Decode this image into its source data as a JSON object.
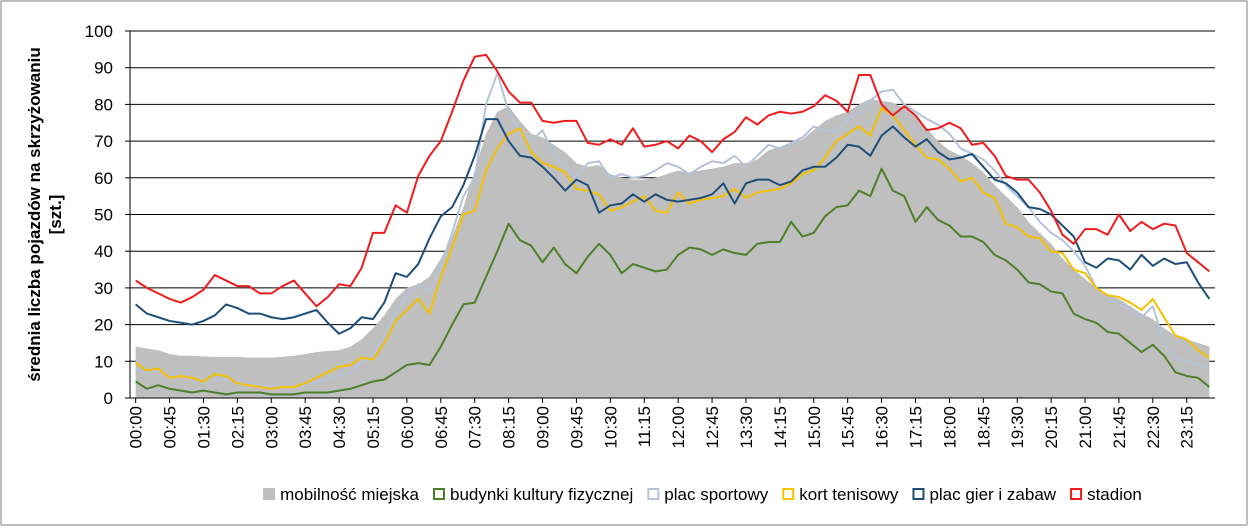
{
  "chart_data": {
    "type": "line",
    "ylabel": [
      "średnia liczba pojazdów na skrzyżowaniu",
      "[szt.]"
    ],
    "categories": [
      "00:00",
      null,
      null,
      "00:45",
      null,
      null,
      "01:30",
      null,
      null,
      "02:15",
      null,
      null,
      "03:00",
      null,
      null,
      "03:45",
      null,
      null,
      "04:30",
      null,
      null,
      "05:15",
      null,
      null,
      "06:00",
      null,
      null,
      "06:45",
      null,
      null,
      "07:30",
      null,
      null,
      "08:15",
      null,
      null,
      "09:00",
      null,
      null,
      "09:45",
      null,
      null,
      "10:30",
      null,
      null,
      "11:15",
      null,
      null,
      "12:00",
      null,
      null,
      "12:45",
      null,
      null,
      "13:30",
      null,
      null,
      "14:15",
      null,
      null,
      "15:00",
      null,
      null,
      "15:45",
      null,
      null,
      "16:30",
      null,
      null,
      "17:15",
      null,
      null,
      "18:00",
      null,
      null,
      "18:45",
      null,
      null,
      "19:30",
      null,
      null,
      "20:15",
      null,
      null,
      "21:00",
      null,
      null,
      "21:45",
      null,
      null,
      "22:30",
      null,
      null,
      "23:15",
      null,
      null
    ],
    "ylim": [
      0,
      100
    ],
    "yticks": [
      0,
      10,
      20,
      30,
      40,
      50,
      60,
      70,
      80,
      90,
      100
    ],
    "grid": true,
    "legend": "bottom",
    "series": [
      {
        "name": "mobilność miejska",
        "type": "area",
        "color": "#bfbfbf",
        "values": [
          14,
          13.5,
          13,
          12,
          11.5,
          11.5,
          11.3,
          11.2,
          11.2,
          11.2,
          11,
          11,
          11,
          11.2,
          11.5,
          12,
          12.5,
          12.8,
          13,
          14,
          16,
          19,
          22.5,
          27,
          30,
          31,
          33,
          38,
          44,
          52,
          62,
          72,
          78,
          79.5,
          75.5,
          72,
          71,
          69,
          67,
          64,
          63,
          63.5,
          61,
          60,
          59.5,
          59.5,
          60,
          61,
          62,
          61.5,
          62,
          62.5,
          63,
          64,
          64,
          65,
          67.5,
          68.5,
          69.5,
          70.5,
          73,
          75.5,
          77,
          78,
          80,
          81.5,
          81,
          80.5,
          79,
          77,
          73.5,
          70,
          67.5,
          66,
          64,
          61.5,
          58,
          55,
          52,
          48,
          45,
          42,
          38,
          35,
          32.5,
          30,
          28,
          27,
          25,
          23,
          21.5,
          19,
          17,
          16,
          15,
          14
        ]
      },
      {
        "name": "budynki kultury fizycznej",
        "type": "line",
        "color": "#4f7f2a",
        "values": [
          4.5,
          2.5,
          3.5,
          2.5,
          2,
          1.5,
          2,
          1.5,
          1,
          1.5,
          1.5,
          1.5,
          1,
          1,
          1,
          1.5,
          1.5,
          1.5,
          2,
          2.5,
          3.5,
          4.5,
          5,
          7,
          9,
          9.5,
          9,
          14,
          20,
          25.5,
          26,
          33,
          40,
          47.5,
          43,
          41.5,
          37,
          41,
          36.5,
          34,
          38.5,
          42,
          39,
          34,
          36.5,
          35.5,
          34.5,
          35,
          39,
          41,
          40.5,
          39,
          40.5,
          39.5,
          39,
          42,
          42.5,
          42.5,
          48,
          44,
          45,
          49.5,
          52,
          52.5,
          56.5,
          55,
          62.5,
          56.5,
          55,
          48,
          52,
          48.5,
          47,
          44,
          44,
          42.5,
          39,
          37.5,
          35,
          31.5,
          31,
          29,
          28.5,
          23,
          21.5,
          20.5,
          18,
          17.5,
          15,
          12.5,
          14.5,
          11.5,
          7,
          6,
          5.5,
          3
        ]
      },
      {
        "name": "plac sportowy",
        "type": "line",
        "color": "#b7c3d9",
        "values": [
          8,
          7,
          7.5,
          6,
          6,
          5.5,
          5,
          5,
          5,
          4.5,
          4,
          3.5,
          3,
          3,
          3,
          3.5,
          4.5,
          5,
          6,
          7,
          10,
          11,
          17,
          23,
          28,
          31,
          29,
          36,
          45,
          55,
          60,
          80,
          88.5,
          78,
          73,
          70,
          73,
          66,
          63,
          60,
          64,
          64.5,
          60,
          61,
          60,
          60.5,
          62,
          64,
          63,
          61,
          63,
          64.5,
          64,
          66,
          63,
          66,
          69,
          68,
          69.5,
          71,
          74,
          73,
          72.5,
          76,
          78,
          81,
          83.5,
          84,
          80,
          78,
          76,
          74.5,
          72,
          68,
          66.5,
          65,
          62,
          58,
          55,
          52,
          48,
          45,
          43,
          40,
          36,
          30,
          27.5,
          25.5,
          24,
          22,
          25,
          15,
          11,
          10,
          9,
          8
        ]
      },
      {
        "name": "kort tenisowy",
        "type": "line",
        "color": "#f5c000",
        "values": [
          9.5,
          7.5,
          8,
          5.5,
          6,
          5.5,
          4.5,
          6.5,
          6,
          4,
          3.5,
          3,
          2.5,
          3,
          3,
          4,
          5.5,
          7,
          8.5,
          9,
          11,
          10.5,
          15,
          21,
          24,
          27,
          23,
          33,
          41,
          50,
          51,
          62,
          68,
          72,
          73.5,
          67,
          64,
          63,
          61.5,
          57,
          56.5,
          55.5,
          51,
          52,
          53.5,
          55,
          51,
          50.5,
          56,
          53,
          54,
          54.5,
          55,
          57,
          54.5,
          56,
          56.5,
          57,
          58.5,
          61,
          62,
          65.5,
          70,
          72,
          74,
          71.5,
          79,
          77,
          73,
          69,
          65.5,
          65,
          62.5,
          59,
          60,
          56,
          54.5,
          47.5,
          46.5,
          44,
          43.5,
          40,
          39.5,
          35,
          34,
          30,
          28,
          27.5,
          26,
          24,
          27,
          22,
          17,
          16,
          13,
          11
        ]
      },
      {
        "name": "plac gier i zabaw",
        "type": "line",
        "color": "#1f4e79",
        "values": [
          25.5,
          23,
          22,
          21,
          20.5,
          20,
          21,
          22.5,
          25.5,
          24.5,
          23,
          23,
          22,
          21.5,
          22,
          23,
          24,
          20.5,
          17.5,
          19,
          22,
          21.5,
          26,
          34,
          33,
          36.5,
          43.5,
          49.5,
          52,
          58,
          66,
          76,
          76,
          70,
          66,
          65.5,
          63,
          60,
          56.5,
          59.5,
          58,
          50.5,
          52.5,
          53,
          55.5,
          53.5,
          55.5,
          54,
          53.5,
          54,
          54.5,
          55.5,
          58.5,
          53,
          58.5,
          59.5,
          59.5,
          58,
          59,
          62,
          63,
          63,
          65.5,
          69,
          68.5,
          66,
          71.5,
          74,
          71,
          68.5,
          70.5,
          67,
          65,
          65.5,
          66.5,
          63,
          59.5,
          58.5,
          56,
          52,
          51.5,
          50,
          47,
          44,
          37,
          35.5,
          38,
          37.5,
          35,
          39,
          36,
          38,
          36.5,
          37,
          31.5,
          27
        ]
      },
      {
        "name": "stadion",
        "type": "line",
        "color": "#ee1c1c",
        "values": [
          32,
          30,
          28.5,
          27,
          26,
          27.5,
          29.5,
          33.5,
          32,
          30.5,
          30.5,
          28.5,
          28.5,
          30.5,
          32,
          28.5,
          25,
          27.5,
          31,
          30.5,
          35.5,
          45,
          45,
          52.5,
          50.5,
          60.5,
          66,
          70,
          78,
          86.5,
          93,
          93.5,
          89,
          83.5,
          80.5,
          80.5,
          75.5,
          75,
          75.5,
          75.5,
          69.5,
          69,
          70.5,
          69,
          73.5,
          68.5,
          69,
          70,
          68,
          71.5,
          70,
          67,
          70.5,
          72.5,
          76.5,
          74.5,
          77,
          78,
          77.5,
          78,
          79.5,
          82.5,
          81,
          78,
          88,
          88,
          80,
          77,
          79.5,
          77,
          73,
          73.5,
          75,
          73.5,
          69,
          69.5,
          66,
          60.5,
          59.5,
          59.5,
          56,
          51,
          44.5,
          42,
          46,
          46,
          44.5,
          50,
          45.5,
          48,
          46,
          47.5,
          47,
          39.5,
          37,
          34.5
        ]
      }
    ]
  }
}
